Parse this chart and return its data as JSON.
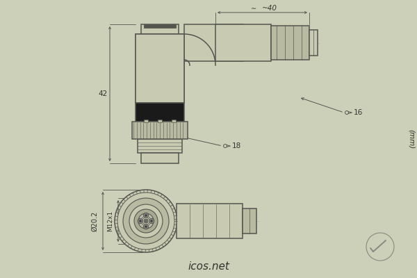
{
  "bg_color": "#cdd0b8",
  "line_color": "#555550",
  "dark_color": "#333330",
  "fill_body": "#c8cbb2",
  "fill_dark": "#1a1a1a",
  "fill_nut": "#b8bba2",
  "title": "icos.net",
  "unit_label": "(mm)",
  "figsize": [
    6.0,
    4.0
  ],
  "dpi": 100
}
